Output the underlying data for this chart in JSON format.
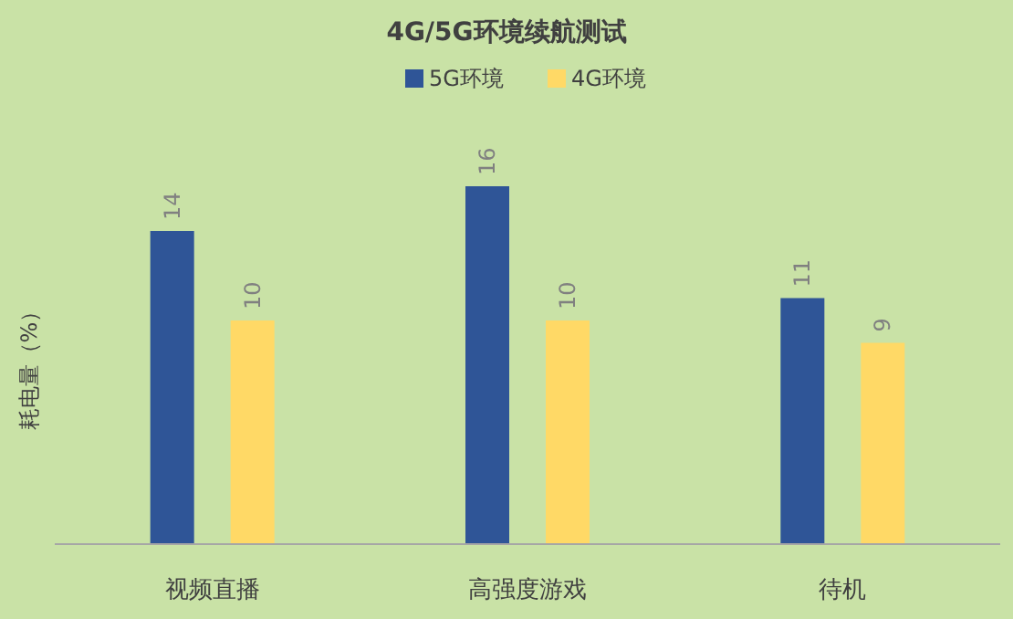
{
  "chart_data": {
    "type": "bar",
    "title": "4G/5G环境续航测试",
    "ylabel": "耗电量（%）",
    "categories": [
      "视频直播",
      "高强度游戏",
      "待机"
    ],
    "series": [
      {
        "name": "5G环境",
        "color": "#2f5597",
        "values": [
          14,
          16,
          11
        ]
      },
      {
        "name": "4G环境",
        "color": "#ffd966",
        "values": [
          10,
          10,
          9
        ]
      }
    ],
    "data_labels": true,
    "legend": "top"
  }
}
